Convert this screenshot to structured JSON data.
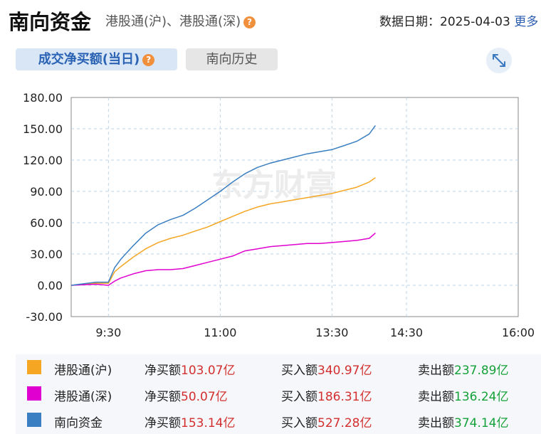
{
  "header": {
    "title": "南向资金",
    "subtitle": "港股通(沪)、港股通(深)",
    "date_label": "数据日期：",
    "date_value": "2025-04-03",
    "more_label": "更多"
  },
  "tabs": [
    {
      "label": "成交净买额(当日)",
      "active": true
    },
    {
      "label": "南向历史",
      "active": false
    }
  ],
  "icons": {
    "help": "help-icon",
    "expand": "expand-icon"
  },
  "colors": {
    "sh": "#f5a623",
    "sz": "#e000d0",
    "total": "#3a7fc1",
    "net_value": "#d32f2f",
    "sell_value": "#15a13a"
  },
  "chart_data": {
    "type": "line",
    "title": "",
    "xlabel": "",
    "ylabel": "",
    "ylim": [
      -30,
      180
    ],
    "y_ticks": [
      "180.00",
      "150.00",
      "120.00",
      "90.00",
      "60.00",
      "30.00",
      "0.00",
      "-30.00"
    ],
    "x_ticks": [
      "9:30",
      "11:00",
      "13:30",
      "14:30",
      "16:00"
    ],
    "grid": true,
    "watermark": "东方财富",
    "x_axis_note": "minutes offset from 09:00 on a trading-session axis; 9:30=30, 11:00=120, 13:30=210, 14:30=270, 16:00=360",
    "x": [
      0,
      20,
      30,
      35,
      40,
      50,
      60,
      70,
      80,
      90,
      100,
      110,
      120,
      130,
      140,
      150,
      160,
      170,
      180,
      190,
      200,
      210,
      220,
      230,
      240,
      245
    ],
    "series": [
      {
        "name": "港股通(沪)",
        "values": [
          0,
          2,
          2,
          13,
          18,
          27,
          35,
          41,
          45,
          48,
          52,
          56,
          61,
          66,
          71,
          75,
          78,
          80,
          82,
          84,
          86,
          88,
          91,
          94,
          99,
          103.07
        ]
      },
      {
        "name": "港股通(深)",
        "values": [
          0,
          1,
          0,
          4,
          7,
          11,
          14,
          15,
          15,
          16,
          19,
          22,
          25,
          28,
          33,
          35,
          37,
          38,
          39,
          40,
          40,
          41,
          42,
          43,
          45,
          50.07
        ]
      },
      {
        "name": "南向资金",
        "values": [
          0,
          3,
          3,
          17,
          25,
          38,
          50,
          58,
          63,
          67,
          74,
          82,
          90,
          99,
          107,
          113,
          117,
          120,
          123,
          126,
          128,
          130,
          134,
          138,
          145,
          153.14
        ]
      }
    ]
  },
  "legend": [
    {
      "name": "港股通(沪)",
      "net_label": "净买额",
      "net": "103.07亿",
      "buy_label": "买入额",
      "buy": "340.97亿",
      "sell_label": "卖出额",
      "sell": "237.89亿"
    },
    {
      "name": "港股通(深)",
      "net_label": "净买额",
      "net": "50.07亿",
      "buy_label": "买入额",
      "buy": "186.31亿",
      "sell_label": "卖出额",
      "sell": "136.24亿"
    },
    {
      "name": "南向资金",
      "net_label": "净买额",
      "net": "153.14亿",
      "buy_label": "买入额",
      "buy": "527.28亿",
      "sell_label": "卖出额",
      "sell": "374.14亿"
    }
  ]
}
